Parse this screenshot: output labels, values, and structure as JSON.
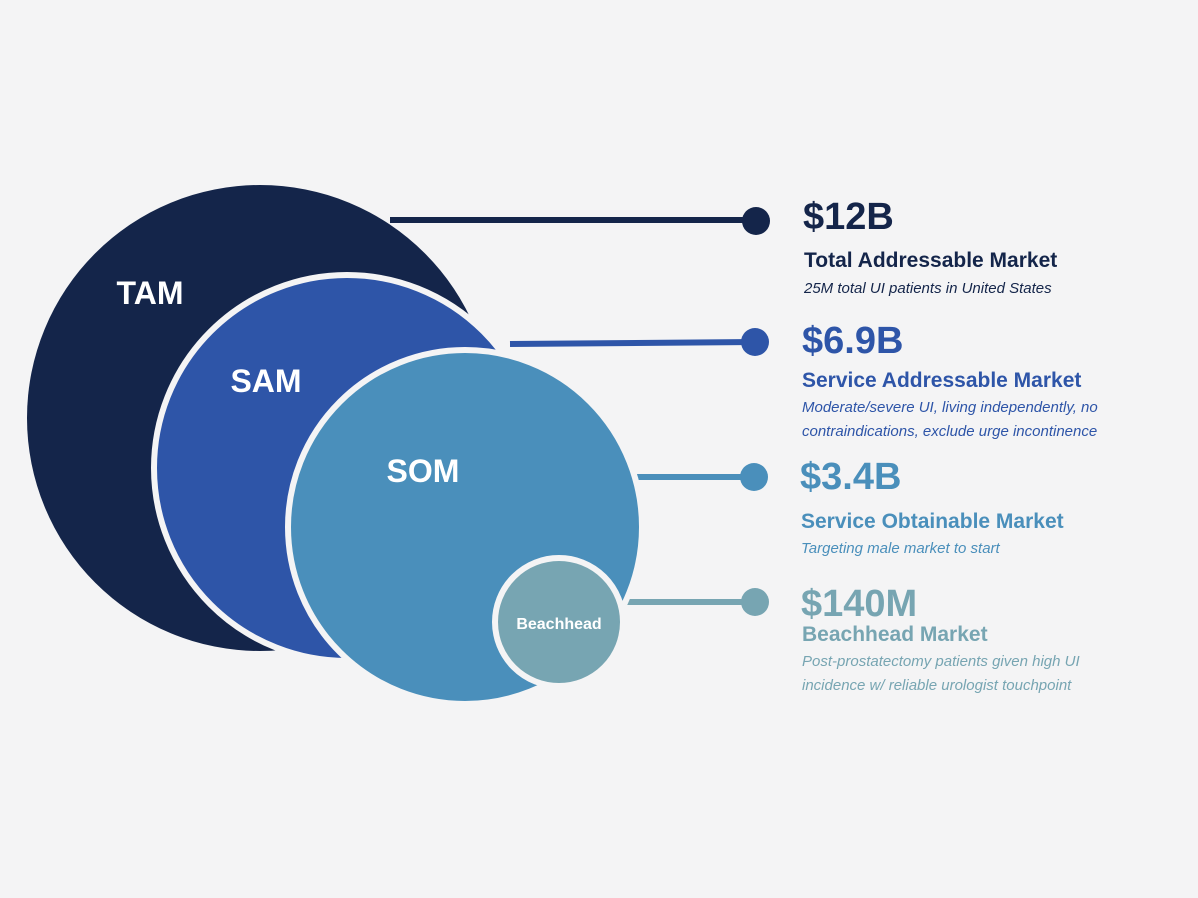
{
  "colors": {
    "background": "#f4f4f5",
    "tam": "#14254a",
    "sam": "#2e55a8",
    "som": "#4a8fbb",
    "beachhead": "#77a5b2",
    "outline": "#f4f4f5"
  },
  "circles": {
    "tam_label": "TAM",
    "sam_label": "SAM",
    "som_label": "SOM",
    "beachhead_label": "Beachhead"
  },
  "markets": [
    {
      "value": "$12B",
      "name": "Total Addressable Market",
      "description": "25M total UI patients in United States"
    },
    {
      "value": "$6.9B",
      "name": "Service Addressable Market",
      "description": "Moderate/severe UI, living independently, no contraindications, exclude urge incontinence"
    },
    {
      "value": "$3.4B",
      "name": "Service Obtainable Market",
      "description": "Targeting male market to start"
    },
    {
      "value": "$140M",
      "name": "Beachhead Market",
      "description": "Post-prostatectomy patients given high UI incidence w/ reliable urologist touchpoint"
    }
  ]
}
